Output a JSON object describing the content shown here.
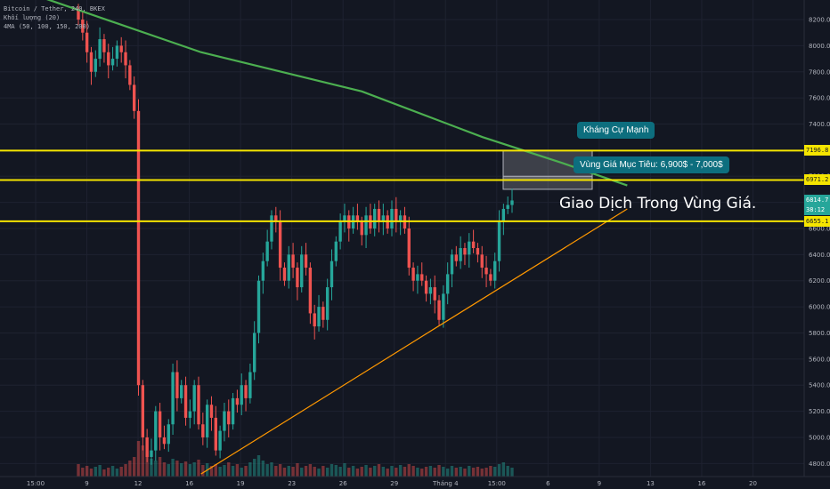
{
  "legend": {
    "symbol": "Bitcoin / Tether, 240, BKEX",
    "volume": "Khối lượng (20)",
    "ma": "4MA (50, 100, 150, 200)"
  },
  "annotations": {
    "resistance": "Kháng Cự Mạnh",
    "target_zone": "Vùng Giá Mục Tiêu: 6,900$ - 7,000$",
    "trade_note": "Giao Dịch Trong Vùng Giá."
  },
  "colors": {
    "background": "#131722",
    "grid": "#1e2230",
    "up": "#26a69a",
    "down": "#ef5350",
    "level_line": "#f5e500",
    "ma_line": "#4caf50",
    "trendline": "#ff9800",
    "callout": "#0d6e7e"
  },
  "price_tags": [
    {
      "value": "7196.8",
      "price": 7196.8,
      "style": "yellow"
    },
    {
      "value": "6971.2",
      "price": 6971.2,
      "style": "yellow"
    },
    {
      "value": "6814.7",
      "price": 6814.7,
      "style": "green"
    },
    {
      "value": "38:12",
      "price": 6740,
      "style": "green"
    },
    {
      "value": "6655.1",
      "price": 6655.1,
      "style": "yellow"
    }
  ],
  "chart_data": {
    "type": "candlestick",
    "title": "Bitcoin / Tether, 240, BKEX",
    "xlabel": "",
    "ylabel": "",
    "ylim": [
      4700,
      8350
    ],
    "y_ticks": [
      8200,
      8000,
      7800,
      7600,
      7400,
      7200,
      7000,
      6800,
      6600,
      6400,
      6200,
      6000,
      5800,
      5600,
      5400,
      5200,
      5000,
      4800
    ],
    "y_tick_labels": [
      "8200.0",
      "8000.0",
      "7800.0",
      "7600.0",
      "7400.0",
      "7200.0",
      "7000.0",
      "6800.0",
      "6600.0",
      "6400.0",
      "6200.0",
      "6000.0",
      "5800.0",
      "5600.0",
      "5400.0",
      "5200.0",
      "5000.0",
      "4800.0"
    ],
    "x_ticks": [
      "15:00",
      "9",
      "12",
      "16",
      "19",
      "23",
      "26",
      "29",
      "Tháng 4",
      "15:00",
      "6",
      "9",
      "13",
      "16",
      "20"
    ],
    "levels": [
      7196.8,
      6971.2,
      6655.1
    ],
    "zones": [
      [
        6971.2,
        7196.8
      ],
      [
        6900,
        7000
      ]
    ],
    "close": [
      8200,
      8100,
      7950,
      7800,
      7900,
      8050,
      7950,
      7850,
      7900,
      8000,
      7950,
      7850,
      7700,
      7500,
      5400,
      5000,
      4850,
      4900,
      5200,
      5000,
      4950,
      5100,
      5500,
      5300,
      5400,
      5150,
      5200,
      5400,
      5100,
      5000,
      5250,
      5150,
      4900,
      5050,
      5200,
      5100,
      5300,
      5250,
      5400,
      5300,
      5500,
      5800,
      6200,
      6350,
      6500,
      6700,
      6650,
      6300,
      6200,
      6400,
      6300,
      6150,
      6400,
      6300,
      5950,
      5850,
      6000,
      5900,
      6150,
      6350,
      6500,
      6650,
      6700,
      6600,
      6700,
      6650,
      6550,
      6700,
      6600,
      6750,
      6650,
      6700,
      6600,
      6750,
      6650,
      6700,
      6600,
      6300,
      6200,
      6250,
      6200,
      6100,
      6150,
      6050,
      5900,
      6100,
      6250,
      6400,
      6350,
      6450,
      6400,
      6500,
      6450,
      6400,
      6300,
      6250,
      6200,
      6350,
      6650,
      6750,
      6780,
      6814.7
    ],
    "volume": [
      14,
      10,
      12,
      9,
      11,
      13,
      8,
      10,
      12,
      9,
      11,
      14,
      18,
      22,
      40,
      35,
      28,
      20,
      18,
      22,
      16,
      14,
      20,
      18,
      15,
      17,
      14,
      16,
      19,
      13,
      15,
      12,
      14,
      11,
      13,
      16,
      12,
      14,
      10,
      12,
      16,
      20,
      24,
      18,
      14,
      16,
      12,
      14,
      10,
      12,
      11,
      15,
      10,
      12,
      14,
      11,
      9,
      12,
      10,
      14,
      13,
      11,
      15,
      10,
      12,
      9,
      11,
      13,
      10,
      12,
      14,
      11,
      9,
      12,
      10,
      13,
      11,
      14,
      12,
      10,
      9,
      11,
      12,
      10,
      13,
      11,
      9,
      12,
      10,
      11,
      9,
      12,
      10,
      11,
      9,
      10,
      12,
      11,
      14,
      16,
      12,
      10
    ],
    "ma_line": [
      [
        0,
        8480
      ],
      [
        0.25,
        7950
      ],
      [
        0.45,
        7650
      ],
      [
        0.6,
        7300
      ],
      [
        0.7,
        7100
      ],
      [
        0.78,
        6930
      ]
    ],
    "trendline": [
      [
        0.25,
        4720
      ],
      [
        0.55,
        5870
      ],
      [
        0.78,
        6750
      ]
    ]
  }
}
